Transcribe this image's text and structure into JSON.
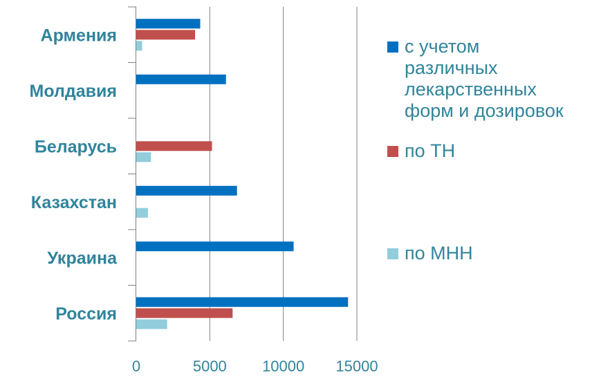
{
  "chart_data": {
    "type": "bar",
    "orientation": "horizontal",
    "categories": [
      "Армения",
      "Молдавия",
      "Беларусь",
      "Казахстан",
      "Украина",
      "Россия"
    ],
    "series": [
      {
        "name": "с учетом различных лекарственных форм и дозировок",
        "color": "#0070c0",
        "values": [
          4350,
          6100,
          null,
          6850,
          10700,
          14400
        ]
      },
      {
        "name": "по ТН",
        "color": "#c0504d",
        "values": [
          4000,
          null,
          5150,
          null,
          null,
          6550
        ]
      },
      {
        "name": "по МНН",
        "color": "#92cddc",
        "values": [
          400,
          null,
          1000,
          800,
          null,
          2100
        ]
      }
    ],
    "legend_lines": [
      [
        "с учетом",
        "различных",
        "лекарственных",
        "форм и дозировок"
      ],
      [
        "по ТН"
      ],
      [
        "по МНН"
      ]
    ],
    "xlim": [
      0,
      15000
    ],
    "xticks": [
      "0",
      "5000",
      "10000",
      "15000"
    ],
    "xtick_values": [
      0,
      5000,
      10000,
      15000
    ],
    "grid": "vertical-major",
    "legend_position": "right"
  }
}
